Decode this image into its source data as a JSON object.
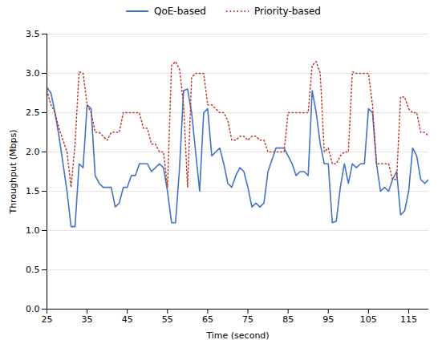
{
  "chart_data": {
    "type": "line",
    "xlabel": "Time (second)",
    "ylabel": "Throughput (Mbps)",
    "xlim": [
      25,
      120
    ],
    "ylim": [
      0.0,
      3.5
    ],
    "xticks": [
      25,
      35,
      45,
      55,
      65,
      75,
      85,
      95,
      105,
      115
    ],
    "yticks": [
      {
        "value": 0.0,
        "label": "0.0"
      },
      0.5,
      {
        "value": 1.0,
        "label": "1.0"
      },
      1.5,
      {
        "value": 2.0,
        "label": "2.0"
      },
      2.5,
      {
        "value": 3.0,
        "label": "3.0"
      },
      3.5
    ],
    "grid": "y",
    "legend": "top",
    "x": [
      25,
      26,
      27,
      28,
      29,
      30,
      31,
      32,
      33,
      34,
      35,
      36,
      37,
      38,
      39,
      40,
      41,
      42,
      43,
      44,
      45,
      46,
      47,
      48,
      49,
      50,
      51,
      52,
      53,
      54,
      55,
      56,
      57,
      58,
      59,
      60,
      61,
      62,
      63,
      64,
      65,
      66,
      67,
      68,
      69,
      70,
      71,
      72,
      73,
      74,
      75,
      76,
      77,
      78,
      79,
      80,
      81,
      82,
      83,
      84,
      85,
      86,
      87,
      88,
      89,
      90,
      91,
      92,
      93,
      94,
      95,
      96,
      97,
      98,
      99,
      100,
      101,
      102,
      103,
      104,
      105,
      106,
      107,
      108,
      109,
      110,
      111,
      112,
      113,
      114,
      115,
      116,
      117,
      118,
      119,
      120
    ],
    "series": [
      {
        "name": "QoE-based",
        "color": "#4472C4",
        "line_style": "solid",
        "values": [
          2.82,
          2.75,
          2.5,
          2.2,
          1.85,
          1.5,
          1.05,
          1.05,
          1.85,
          1.8,
          2.6,
          2.55,
          1.7,
          1.6,
          1.55,
          1.55,
          1.55,
          1.3,
          1.35,
          1.55,
          1.55,
          1.7,
          1.7,
          1.85,
          1.85,
          1.85,
          1.75,
          1.8,
          1.85,
          1.8,
          1.5,
          1.1,
          1.1,
          1.8,
          2.78,
          2.8,
          2.5,
          2.0,
          1.5,
          2.5,
          2.55,
          1.95,
          2.0,
          2.05,
          1.85,
          1.6,
          1.55,
          1.7,
          1.8,
          1.75,
          1.55,
          1.3,
          1.35,
          1.3,
          1.35,
          1.75,
          1.9,
          2.05,
          2.05,
          2.05,
          1.95,
          1.85,
          1.7,
          1.75,
          1.75,
          1.7,
          2.78,
          2.5,
          2.1,
          1.85,
          1.85,
          1.1,
          1.12,
          1.55,
          1.85,
          1.6,
          1.85,
          1.8,
          1.85,
          1.85,
          2.55,
          2.5,
          1.85,
          1.5,
          1.55,
          1.5,
          1.65,
          1.75,
          1.2,
          1.25,
          1.5,
          2.05,
          1.95,
          1.65,
          1.6,
          1.65
        ]
      },
      {
        "name": "Priority-based",
        "color": "#C0392B",
        "line_style": "dotted",
        "values": [
          2.78,
          2.6,
          2.5,
          2.3,
          2.15,
          2.0,
          1.55,
          2.1,
          3.02,
          3.0,
          2.6,
          2.5,
          2.25,
          2.25,
          2.2,
          2.15,
          2.25,
          2.25,
          2.25,
          2.5,
          2.5,
          2.5,
          2.5,
          2.5,
          2.3,
          2.3,
          2.1,
          2.1,
          2.0,
          2.0,
          1.55,
          3.1,
          3.15,
          3.05,
          2.6,
          1.55,
          2.95,
          3.0,
          3.0,
          3.0,
          2.6,
          2.6,
          2.55,
          2.5,
          2.5,
          2.4,
          2.15,
          2.15,
          2.2,
          2.2,
          2.15,
          2.2,
          2.2,
          2.15,
          2.15,
          2.0,
          2.0,
          2.0,
          2.0,
          2.0,
          2.5,
          2.5,
          2.5,
          2.5,
          2.5,
          2.5,
          3.1,
          3.15,
          3.0,
          2.0,
          2.05,
          1.85,
          1.85,
          1.95,
          2.0,
          2.0,
          3.02,
          3.0,
          3.0,
          3.0,
          3.0,
          2.6,
          1.85,
          1.85,
          1.85,
          1.85,
          1.65,
          1.65,
          2.7,
          2.7,
          2.55,
          2.5,
          2.5,
          2.25,
          2.25,
          2.2
        ]
      }
    ]
  }
}
